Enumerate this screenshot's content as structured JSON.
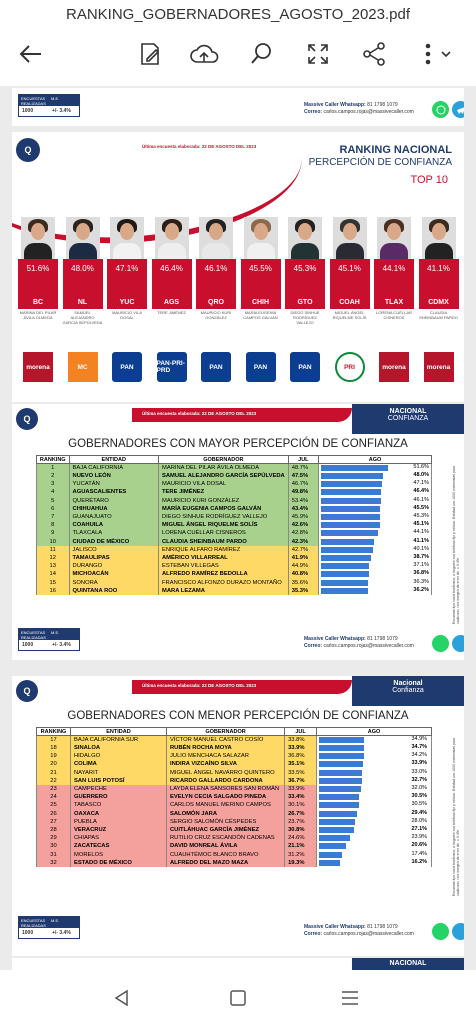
{
  "topbar": {
    "filename": "RANKING_GOBERNADORES_AGOSTO_2023.pdf"
  },
  "footer": {
    "table_head": [
      "ENCUESTAS REALIZADAS",
      "M.E."
    ],
    "table_values": [
      "1000",
      "+/- 3.4%"
    ],
    "wa_label": "Massive Caller Whatsapp:",
    "wa_number": "81 1798 1079",
    "mail_label": "Correo:",
    "mail": "carlos.campos.rojas@massivecaller.com"
  },
  "page2": {
    "date": "Última encuesta elaborada: 22 DE AGOSTO DEL 2023",
    "title1": "RANKING NACIONAL",
    "title2": "PERCEPCIÓN DE CONFIANZA",
    "title3": "TOP 10",
    "cards": [
      {
        "pct": "51.6%",
        "code": "BC",
        "name": "MARINA DEL PILAR ÁVILA OLMEDA",
        "party": "morena",
        "hair": "#3b2a20",
        "body": "#222"
      },
      {
        "pct": "48.0%",
        "code": "NL",
        "name": "SAMUEL ALEJANDRO GARCÍA SEPÚLVEDA",
        "party": "MC",
        "hair": "#2a2420",
        "body": "#1d2a44"
      },
      {
        "pct": "47.1%",
        "code": "YUC",
        "name": "MAURICIO VILA DOSAL",
        "party": "PAN",
        "hair": "#1e1a18",
        "body": "#f2f2f2"
      },
      {
        "pct": "46.4%",
        "code": "AGS",
        "name": "TERE JIMÉNEZ",
        "party": "PAN-PRI-PRD",
        "hair": "#2a1e16",
        "body": "#eee"
      },
      {
        "pct": "46.1%",
        "code": "QRO",
        "name": "MAURICIO KURI GONZÁLEZ",
        "party": "PAN",
        "hair": "#222",
        "body": "#e8e8e8"
      },
      {
        "pct": "45.5%",
        "code": "CHIH",
        "name": "MARÍA EUGENIA CAMPOS GALVÁN",
        "party": "PAN",
        "hair": "#8a6a4a",
        "body": "#f0f0f0"
      },
      {
        "pct": "45.3%",
        "code": "GTO",
        "name": "DIEGO SINHUE RODRÍGUEZ VALLEJO",
        "party": "PAN",
        "hair": "#222",
        "body": "#233"
      },
      {
        "pct": "45.1%",
        "code": "COAH",
        "name": "MIGUEL ÁNGEL RIQUELME SOLÍS",
        "party": "PRI",
        "hair": "#333",
        "body": "#2a2a33"
      },
      {
        "pct": "44.1%",
        "code": "TLAX",
        "name": "LORENA CUÉLLAR CISNEROS",
        "party": "morena",
        "hair": "#4a3020",
        "body": "#5a2a66"
      },
      {
        "pct": "41.1%",
        "code": "CDMX",
        "name": "CLAUDIA SHEINBAUM PARDO",
        "party": "morena",
        "hair": "#3a2a20",
        "body": "#222"
      }
    ]
  },
  "page3": {
    "logo_text": "Massive Caller",
    "date": "Última encuesta elaborada: 22 DE AGOSTO DEL 2023",
    "hdr1": "NACIONAL",
    "hdr2": "CONFIANZA",
    "title": "GOBERNADORES CON MAYOR PERCEPCIÓN DE CONFIANZA",
    "cols": [
      "RANKING",
      "ENTIDAD",
      "GOBERNADOR",
      "JUL",
      "AGO"
    ],
    "rows": [
      [
        "1",
        "BAJA CALIFORNIA",
        "MARINA DEL PILAR ÁVILA OLMEDA",
        "48.7%",
        "51.6%",
        0,
        "#a9d18e"
      ],
      [
        "2",
        "NUEVO LEÓN",
        "SAMUEL ALEJANDRO GARCÍA SEPÚLVEDA",
        "47.5%",
        "48.0%",
        1,
        "#a9d18e"
      ],
      [
        "3",
        "YUCATÁN",
        "MAURICIO VILA DOSAL",
        "46.7%",
        "47.1%",
        0,
        "#a9d18e"
      ],
      [
        "4",
        "AGUASCALIENTES",
        "TERE JIMÉNEZ",
        "49.8%",
        "46.4%",
        1,
        "#a9d18e"
      ],
      [
        "5",
        "QUERÉTARO",
        "MAURICIO KURI GONZÁLEZ",
        "53.4%",
        "46.1%",
        0,
        "#a9d18e"
      ],
      [
        "6",
        "CHIHUAHUA",
        "MARÍA EUGENIA CAMPOS GALVÁN",
        "43.4%",
        "45.5%",
        1,
        "#a9d18e"
      ],
      [
        "7",
        "GUANAJUATO",
        "DIEGO SINHUE RODRÍGUEZ VALLEJO",
        "45.9%",
        "45.3%",
        0,
        "#a9d18e"
      ],
      [
        "8",
        "COAHUILA",
        "MIGUEL ÁNGEL RIQUELME SOLÍS",
        "42.6%",
        "45.1%",
        1,
        "#a9d18e"
      ],
      [
        "9",
        "TLAXCALA",
        "LORENA CUÉLLAR CISNEROS",
        "42.8%",
        "44.1%",
        0,
        "#a9d18e"
      ],
      [
        "10",
        "CIUDAD DE MÉXICO",
        "CLAUDIA SHEINBAUM PARDO",
        "42.3%",
        "41.1%",
        1,
        "#a9d18e"
      ],
      [
        "11",
        "JALISCO",
        "ENRIQUE ALFARO RAMÍREZ",
        "42.7%",
        "40.1%",
        0,
        "#ffd966"
      ],
      [
        "12",
        "TAMAULIPAS",
        "AMÉRICO VILLARREAL",
        "41.9%",
        "38.7%",
        1,
        "#ffd966"
      ],
      [
        "13",
        "DURANGO",
        "ESTEBAN VILLEGAS",
        "44.9%",
        "37.1%",
        0,
        "#ffd966"
      ],
      [
        "14",
        "MICHOACÁN",
        "ALFREDO RAMÍREZ BEDOLLA",
        "40.8%",
        "36.8%",
        1,
        "#ffd966"
      ],
      [
        "15",
        "SONORA",
        "FRANCISCO ALFONZO DURAZO MONTAÑO",
        "35.6%",
        "36.3%",
        0,
        "#ffd966"
      ],
      [
        "16",
        "QUINTANA ROO",
        "MARA LEZAMA",
        "35.3%",
        "36.2%",
        1,
        "#ffd966"
      ]
    ],
    "side": "Encuesta tipo robot telefónica, a hogares con teléfono fijo y celular. Entidad con 1000 entrevistas para cada uno, con margen de error de ±3.4%"
  },
  "page4": {
    "logo_text": "Massive Caller",
    "date": "Última encuesta elaborada: 22 DE AGOSTO DEL 2023",
    "hdr1": "Nacional",
    "hdr2": "Confianza",
    "title": "GOBERNADORES CON MENOR PERCEPCIÓN DE CONFIANZA",
    "cols": [
      "RANKING",
      "ENTIDAD",
      "GOBERNADOR",
      "JUL",
      "AGO"
    ],
    "rows": [
      [
        "17",
        "BAJA CALIFORNIA SUR",
        "VÍCTOR MANUEL CASTRO COSÍO",
        "33.8%",
        "34.9%",
        0,
        "#ffd966"
      ],
      [
        "18",
        "SINALOA",
        "RUBÉN ROCHA MOYA",
        "33.9%",
        "34.7%",
        1,
        "#ffd966"
      ],
      [
        "19",
        "HIDALGO",
        "JULIO MENCHACA SALAZAR",
        "36.8%",
        "34.2%",
        0,
        "#ffd966"
      ],
      [
        "20",
        "COLIMA",
        "INDIRA VIZCAÍNO SILVA",
        "35.1%",
        "33.9%",
        1,
        "#ffd966"
      ],
      [
        "21",
        "NAYARIT",
        "MIGUEL ÁNGEL NAVARRO QUINTERO",
        "33.5%",
        "33.0%",
        0,
        "#ffd966"
      ],
      [
        "22",
        "SAN LUIS POTOSÍ",
        "RICARDO GALLARDO CARDONA",
        "36.7%",
        "32.7%",
        1,
        "#ffd966"
      ],
      [
        "23",
        "CAMPECHE",
        "LAYDA ELENA SANSORES SAN ROMÁN",
        "33.9%",
        "32.0%",
        0,
        "#f4a09c"
      ],
      [
        "24",
        "GUERRERO",
        "EVELYN CECIA SALGADO PINEDA",
        "33.4%",
        "30.5%",
        1,
        "#f4a09c"
      ],
      [
        "25",
        "TABASCO",
        "CARLOS MANUEL MERINO CAMPOS",
        "30.1%",
        "30.5%",
        0,
        "#f4a09c"
      ],
      [
        "26",
        "OAXACA",
        "SALOMÓN JARA",
        "26.7%",
        "29.4%",
        1,
        "#f4a09c"
      ],
      [
        "27",
        "PUEBLA",
        "SERGIO SALOMÓN CÉSPEDES",
        "23.7%",
        "28.0%",
        0,
        "#f4a09c"
      ],
      [
        "28",
        "VERACRUZ",
        "CUITLÁHUAC GARCÍA JIMÉNEZ",
        "30.8%",
        "27.1%",
        1,
        "#f4a09c"
      ],
      [
        "29",
        "CHIAPAS",
        "RUTILIO CRUZ ESCANDÓN CADENAS",
        "24.6%",
        "23.9%",
        0,
        "#f4a09c"
      ],
      [
        "30",
        "ZACATECAS",
        "DAVID MONREAL ÁVILA",
        "21.1%",
        "20.6%",
        1,
        "#f4a09c"
      ],
      [
        "31",
        "MORELOS",
        "CUAUHTÉMOC BLANCO BRAVO",
        "31.2%",
        "17.4%",
        0,
        "#f4a09c"
      ],
      [
        "32",
        "ESTADO DE MÉXICO",
        "ALFREDO DEL MAZO MAZA",
        "19.3%",
        "16.2%",
        1,
        "#f4a09c"
      ]
    ],
    "side": "Encuesta tipo robot telefónica, a hogares con teléfono fijo y celular. Entidad con 1000 entrevistas para cada uno, con margen de error de ±3.4%"
  },
  "page5": {
    "hdr": "NACIONAL"
  }
}
